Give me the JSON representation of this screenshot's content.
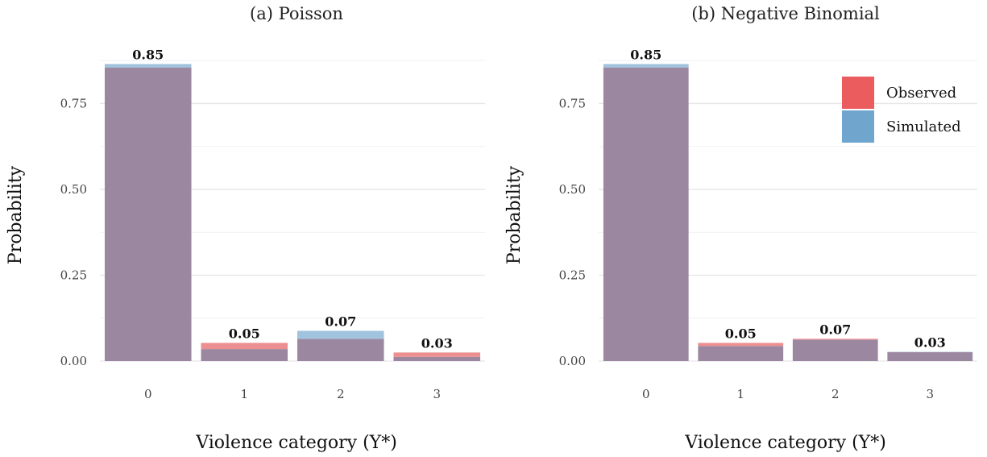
{
  "chart_data": [
    {
      "type": "bar",
      "title": "(a) Poisson",
      "xlabel": "Violence category (Y*)",
      "ylabel": "Probability",
      "categories": [
        "0",
        "1",
        "2",
        "3"
      ],
      "yticks": [
        "0.00",
        "0.25",
        "0.50",
        "0.75"
      ],
      "ylim": [
        0,
        0.92
      ],
      "grid": true,
      "series": [
        {
          "name": "Observed",
          "values": [
            0.855,
            0.053,
            0.065,
            0.025
          ],
          "color": "#E41A1C"
        },
        {
          "name": "Simulated",
          "values": [
            0.865,
            0.035,
            0.088,
            0.012
          ],
          "color": "#377EB8"
        }
      ],
      "labels": [
        "0.85",
        "0.05",
        "0.07",
        "0.03"
      ]
    },
    {
      "type": "bar",
      "title": "(b) Negative Binomial",
      "xlabel": "Violence category (Y*)",
      "ylabel": "Probability",
      "categories": [
        "0",
        "1",
        "2",
        "3"
      ],
      "yticks": [
        "0.00",
        "0.25",
        "0.50",
        "0.75"
      ],
      "ylim": [
        0,
        0.92
      ],
      "grid": true,
      "legend": "top-right",
      "series": [
        {
          "name": "Observed",
          "values": [
            0.855,
            0.053,
            0.065,
            0.026
          ],
          "color": "#E41A1C"
        },
        {
          "name": "Simulated",
          "values": [
            0.865,
            0.044,
            0.062,
            0.027
          ],
          "color": "#377EB8"
        }
      ],
      "labels": [
        "0.85",
        "0.05",
        "0.07",
        "0.03"
      ]
    }
  ]
}
